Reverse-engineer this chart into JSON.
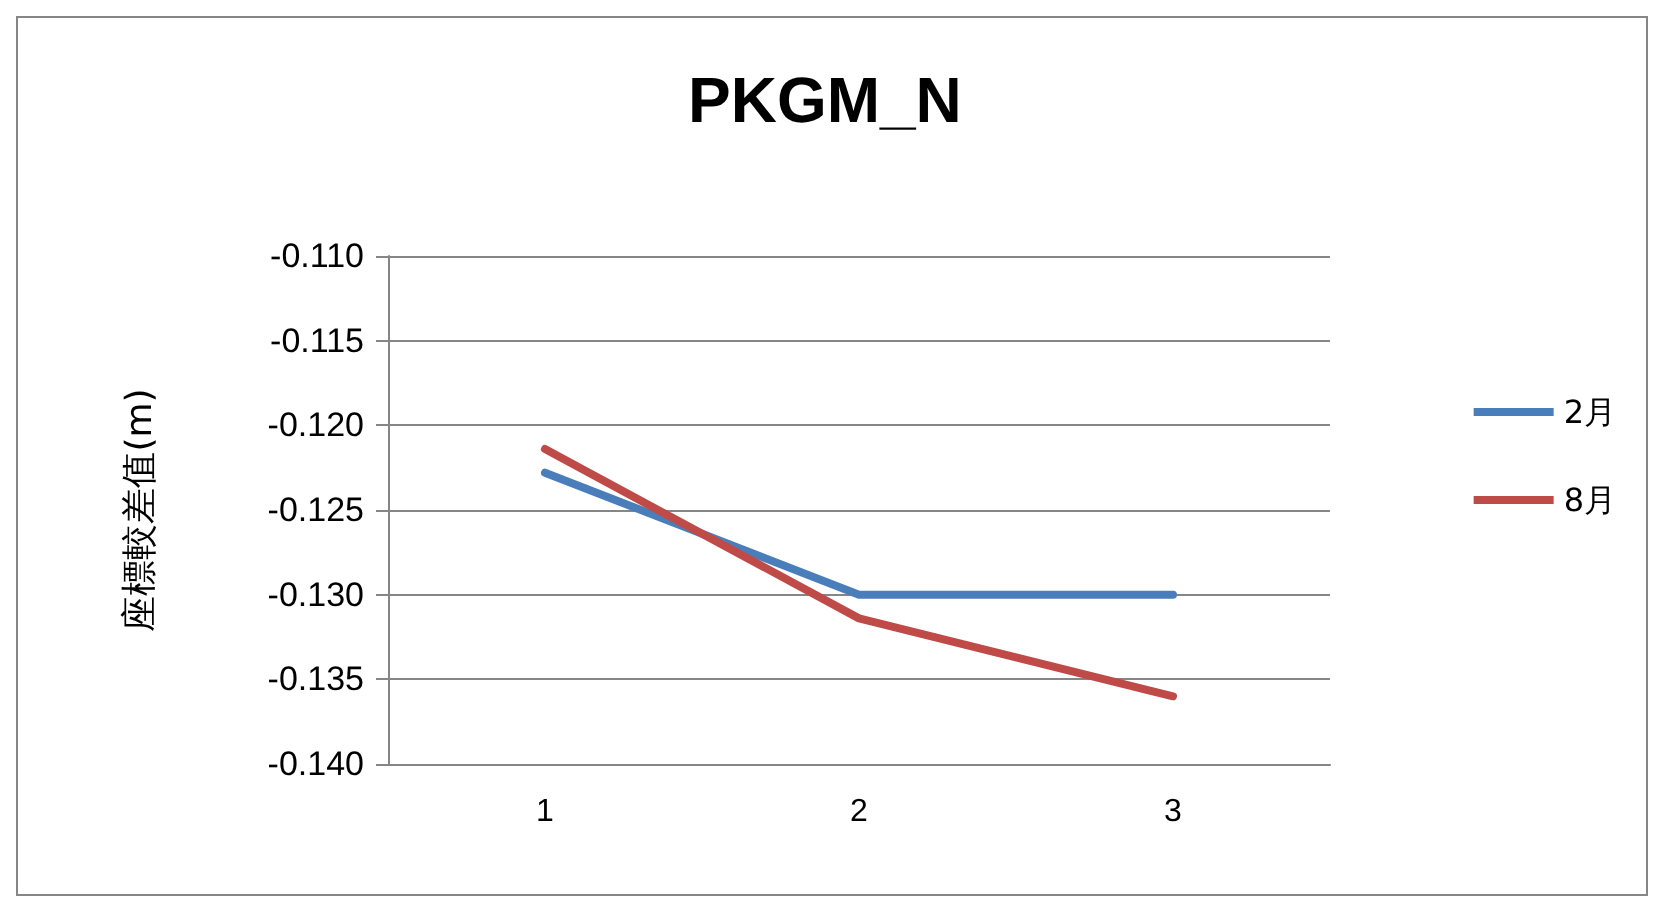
{
  "chart_data": {
    "type": "line",
    "title": "PKGM_N",
    "ylabel": "座標較差值(m)",
    "categories": [
      "1",
      "2",
      "3"
    ],
    "series": [
      {
        "name": "2月",
        "color": "#4a7ebb",
        "values": [
          -0.1228,
          -0.13,
          -0.13
        ]
      },
      {
        "name": "8月",
        "color": "#be4b48",
        "values": [
          -0.1214,
          -0.1314,
          -0.136
        ]
      }
    ],
    "ylim": [
      -0.14,
      -0.11
    ],
    "yticks": [
      {
        "value": -0.14,
        "label": "-0.140"
      },
      {
        "value": -0.135,
        "label": "-0.135"
      },
      {
        "value": -0.13,
        "label": "-0.130"
      },
      {
        "value": -0.125,
        "label": "-0.125"
      },
      {
        "value": -0.12,
        "label": "-0.120"
      },
      {
        "value": -0.115,
        "label": "-0.115"
      },
      {
        "value": -0.11,
        "label": "-0.110"
      }
    ],
    "grid": "y",
    "legend": "right",
    "marker": "none",
    "line_style": "solid"
  }
}
